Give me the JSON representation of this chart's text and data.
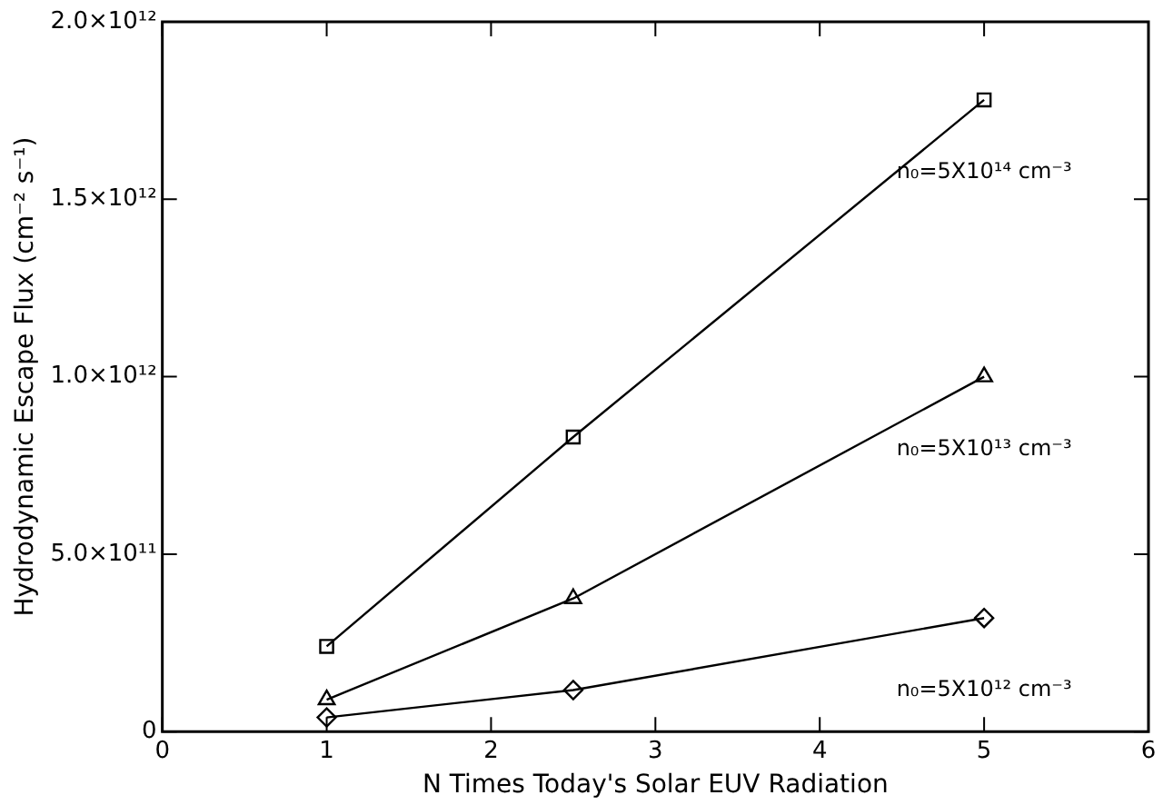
{
  "chart_data": {
    "type": "line",
    "xlabel": "N Times Today's Solar EUV Radiation",
    "ylabel": "Hydrodynamic Escape Flux (cm⁻² s⁻¹)",
    "x": [
      1,
      2.5,
      5
    ],
    "series": [
      {
        "name": "n₀=5X10¹⁴ cm⁻³",
        "color": "#000000",
        "marker": "square",
        "values": [
          240000000000.0,
          830000000000.0,
          1780000000000.0
        ]
      },
      {
        "name": "n₀=5X10¹³ cm⁻³",
        "color": "#000000",
        "marker": "triangle",
        "values": [
          90000000000.0,
          375000000000.0,
          1000000000000.0
        ]
      },
      {
        "name": "n₀=5X10¹² cm⁻³",
        "color": "#000000",
        "marker": "diamond",
        "values": [
          40000000000.0,
          117000000000.0,
          320000000000.0
        ]
      }
    ],
    "xlim": [
      0,
      6
    ],
    "xticks": [
      0,
      1,
      2,
      3,
      4,
      5,
      6
    ],
    "ylim": [
      0,
      2000000000000.0
    ],
    "yticks": [
      {
        "value": 0,
        "label": "0"
      },
      {
        "value": 500000000000.0,
        "label": "5.0×10¹¹"
      },
      {
        "value": 1000000000000.0,
        "label": "1.0×10¹²"
      },
      {
        "value": 1500000000000.0,
        "label": "1.5×10¹²"
      },
      {
        "value": 2000000000000.0,
        "label": "2.0×10¹²"
      }
    ],
    "grid": false,
    "legend": false,
    "line_style": "solid"
  }
}
